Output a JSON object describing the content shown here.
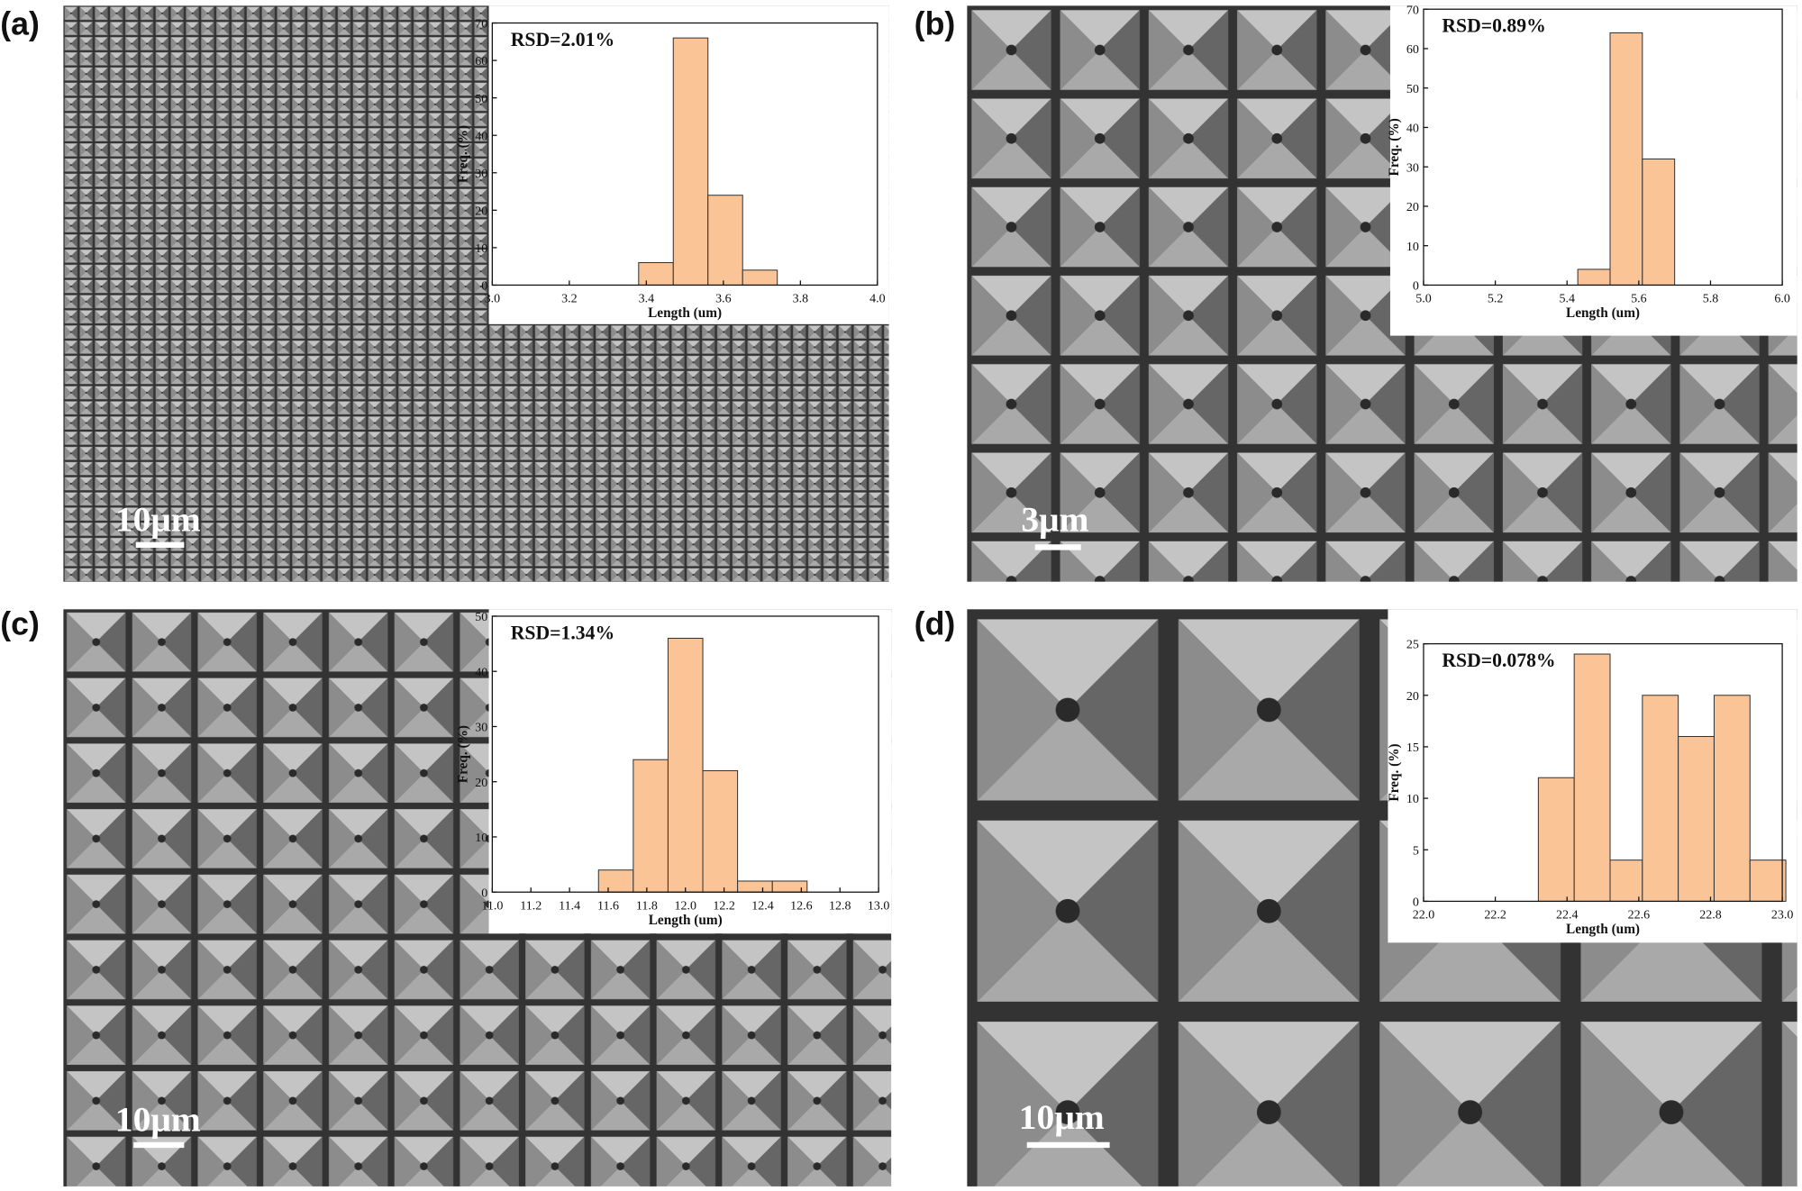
{
  "chart_data": [
    {
      "type": "histogram",
      "panel": "(a)",
      "scale_bar": "10μm",
      "annotation": "RSD=2.01%",
      "x_label": "Length (um)",
      "y_label": "Freq. (%)",
      "bins": [
        3.38,
        3.47,
        3.56,
        3.65,
        3.74
      ],
      "counts": [
        6,
        66,
        24,
        4
      ],
      "color": "#fbc497",
      "xlim": [
        3,
        4
      ],
      "xticks": [
        {
          "value": 3,
          "label": "3.0"
        },
        3.2,
        3.4,
        3.6,
        3.8,
        {
          "value": 4,
          "label": "4.0"
        }
      ],
      "ylim": [
        0,
        70
      ],
      "yticks": [
        0,
        10,
        20,
        30,
        40,
        50,
        60,
        70
      ]
    },
    {
      "type": "histogram",
      "panel": "(b)",
      "scale_bar": "3μm",
      "annotation": "RSD=0.89%",
      "x_label": "Length (um)",
      "y_label": "Freq. (%)",
      "bins": [
        5.43,
        5.52,
        5.61,
        5.7
      ],
      "counts": [
        4,
        64,
        32
      ],
      "color": "#fbc497",
      "xlim": [
        5,
        6
      ],
      "xticks": [
        {
          "value": 5,
          "label": "5.0"
        },
        5.2,
        5.4,
        5.6,
        5.8,
        {
          "value": 6,
          "label": "6.0"
        }
      ],
      "ylim": [
        0,
        70
      ],
      "yticks": [
        0,
        10,
        20,
        30,
        40,
        50,
        60,
        70
      ]
    },
    {
      "type": "histogram",
      "panel": "(c)",
      "scale_bar": "10μm",
      "annotation": "RSD=1.34%",
      "x_label": "Length (um)",
      "y_label": "Freq. (%)",
      "bins": [
        11.55,
        11.73,
        11.91,
        12.09,
        12.27,
        12.45,
        12.63
      ],
      "counts": [
        4,
        24,
        46,
        22,
        2,
        2
      ],
      "color": "#fbc497",
      "xlim": [
        11,
        13
      ],
      "xticks": [
        {
          "value": 11,
          "label": "11.0"
        },
        11.2,
        11.4,
        11.6,
        11.8,
        {
          "value": 12,
          "label": "12.0"
        },
        12.2,
        12.4,
        12.6,
        12.8,
        {
          "value": 13,
          "label": "13.0"
        }
      ],
      "ylim": [
        0,
        50
      ],
      "yticks": [
        0,
        10,
        20,
        30,
        40,
        50
      ]
    },
    {
      "type": "histogram",
      "panel": "(d)",
      "scale_bar": "10μm",
      "annotation": "RSD=0.078%",
      "x_label": "Length (um)",
      "y_label": "Freq. (%)",
      "bins": [
        22.32,
        22.42,
        22.52,
        22.61,
        22.71,
        22.81,
        22.91,
        23.01
      ],
      "counts": [
        12,
        24,
        4,
        20,
        16,
        20,
        4
      ],
      "color": "#fbc497",
      "xlim": [
        22,
        23
      ],
      "xticks": [
        {
          "value": 22,
          "label": "22.0"
        },
        22.2,
        22.4,
        22.6,
        22.8,
        {
          "value": 23,
          "label": "23.0"
        }
      ],
      "ylim": [
        0,
        25
      ],
      "yticks": [
        0,
        5,
        10,
        15,
        20,
        25
      ]
    }
  ]
}
